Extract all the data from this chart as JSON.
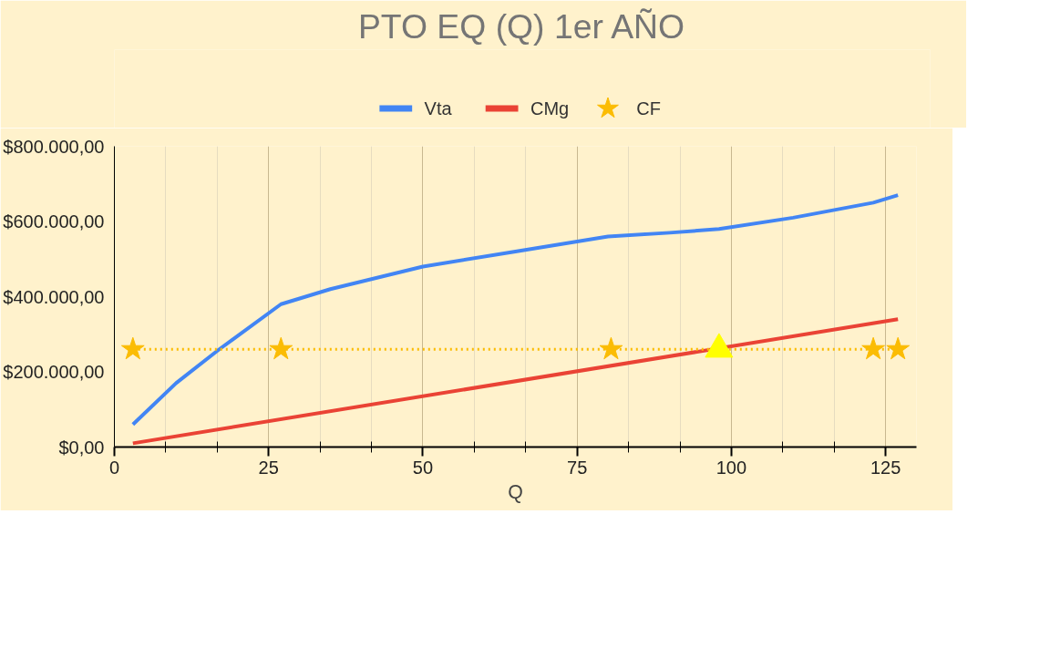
{
  "chart_data": {
    "type": "line",
    "title": "PTO EQ (Q) 1er AÑO",
    "xlabel": "Q",
    "xlim": [
      0,
      130
    ],
    "xticks": [
      0,
      {
        "value": 8.33,
        "label": null
      },
      {
        "value": 16.67,
        "label": null
      },
      25,
      {
        "value": 33.33,
        "label": null
      },
      {
        "value": 41.67,
        "label": null
      },
      50,
      {
        "value": 58.33,
        "label": null
      },
      {
        "value": 66.67,
        "label": null
      },
      75,
      {
        "value": 83.33,
        "label": null
      },
      {
        "value": 91.67,
        "label": null
      },
      100,
      {
        "value": 108.33,
        "label": null
      },
      {
        "value": 116.67,
        "label": null
      },
      125
    ],
    "ylim": [
      0,
      800000
    ],
    "yticks": [
      {
        "value": 0,
        "label": "$0,00"
      },
      {
        "value": 200000,
        "label": "$200.000,00"
      },
      {
        "value": 400000,
        "label": "$400.000,00"
      },
      {
        "value": 600000,
        "label": "$600.000,00"
      },
      {
        "value": 800000,
        "label": "$800.000,00"
      }
    ],
    "grid": "x",
    "legend": "top",
    "series": [
      {
        "name": "Vta",
        "color": "#4285f4",
        "marker": "none",
        "line_style": "solid",
        "x": [
          3,
          10,
          17,
          27,
          35,
          50,
          65,
          80,
          90,
          98,
          110,
          123,
          127
        ],
        "values": [
          60000,
          170000,
          260000,
          380000,
          420000,
          480000,
          520000,
          560000,
          570000,
          580000,
          610000,
          650000,
          670000
        ]
      },
      {
        "name": "CMg",
        "color": "#ea4335",
        "marker": "none",
        "line_style": "solid",
        "x": [
          3,
          127
        ],
        "values": [
          10000,
          340000
        ]
      },
      {
        "name": "CF",
        "color": "#fbbc04",
        "marker": "star",
        "line_style": "dotted",
        "x": [
          3,
          27,
          80.5,
          123,
          127
        ],
        "values": [
          260000,
          260000,
          260000,
          260000,
          260000
        ]
      },
      {
        "type": "scatter",
        "color": "#ffff00",
        "marker": "triangle",
        "x": [
          98
        ],
        "values": [
          260000
        ]
      }
    ]
  }
}
